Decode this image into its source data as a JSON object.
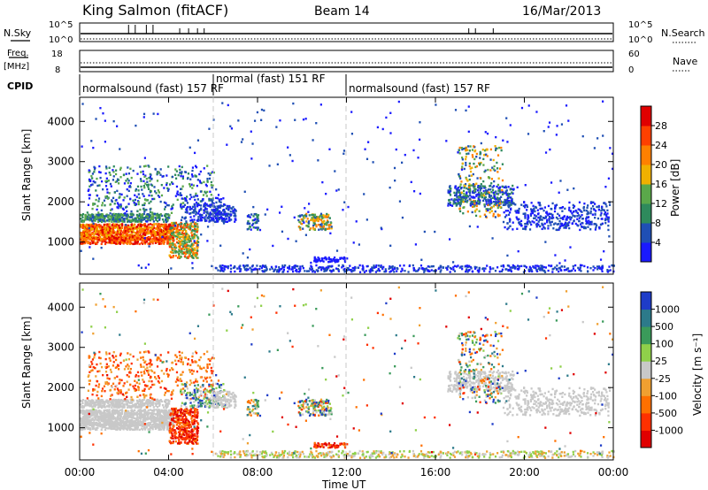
{
  "header": {
    "station": "King Salmon (fitACF)",
    "beam": "Beam 14",
    "date": "16/Mar/2013"
  },
  "sky_panel": {
    "left_label": "N.Sky",
    "right_label": "N.Search",
    "left_ticks": [
      "10^5",
      "10^0"
    ],
    "right_ticks": [
      "10^5",
      "10^0"
    ]
  },
  "freq_panel": {
    "left_label_1": "Freq.",
    "left_label_2": "[MHz]",
    "right_label": "Nave",
    "left_ticks": [
      "18",
      "8"
    ],
    "right_ticks": [
      "60",
      "0"
    ]
  },
  "cpid": {
    "label": "CPID",
    "segments": [
      {
        "text": "normalsound (fast) 157 RF",
        "start_hour": 0,
        "end_hour": 6.0
      },
      {
        "text": "normal (fast) 151 RF",
        "start_hour": 6.0,
        "end_hour": 12.0
      },
      {
        "text": "normalsound (fast) 157 RF",
        "start_hour": 12.0,
        "end_hour": 24.0
      }
    ]
  },
  "x_axis": {
    "label": "Time UT",
    "ticks": [
      "00:00",
      "04:00",
      "08:00",
      "12:00",
      "16:00",
      "20:00",
      "00:00"
    ]
  },
  "power_colorbar": {
    "label": "Power [dB]",
    "ticks": [
      "4",
      "8",
      "12",
      "16",
      "20",
      "24",
      "28"
    ],
    "colors": [
      "#1a1aff",
      "#1f4fb4",
      "#2e8a5c",
      "#5aa84a",
      "#f0b000",
      "#ff8000",
      "#ff4000",
      "#e00000"
    ]
  },
  "velocity_colorbar": {
    "label": "Velocity [m s⁻¹]",
    "ticks": [
      "1000",
      "500",
      "100",
      "25",
      "-25",
      "-100",
      "-500",
      "-1000"
    ],
    "colors": [
      "#1e3cc8",
      "#2c7a8a",
      "#3a9a5a",
      "#8fd04a",
      "#c8c8c8",
      "#f0a030",
      "#ff7000",
      "#ff3000",
      "#e00000"
    ]
  },
  "chart_data": [
    {
      "type": "heatmap",
      "title": "Power",
      "xlabel": "Time UT",
      "ylabel": "Slant Range [km]",
      "y_ticks": [
        "1000",
        "2000",
        "3000",
        "4000"
      ],
      "xlim": [
        0,
        24
      ],
      "ylim": [
        200,
        4600
      ],
      "colorbar_label": "Power [dB]",
      "colorbar_range": [
        0,
        30
      ]
    },
    {
      "type": "heatmap",
      "title": "Velocity",
      "xlabel": "Time UT",
      "ylabel": "Slant Range [km]",
      "y_ticks": [
        "1000",
        "2000",
        "3000",
        "4000"
      ],
      "xlim": [
        0,
        24
      ],
      "ylim": [
        200,
        4600
      ],
      "colorbar_label": "Velocity [m s⁻¹]",
      "colorbar_range": [
        -1000,
        1000
      ]
    }
  ]
}
